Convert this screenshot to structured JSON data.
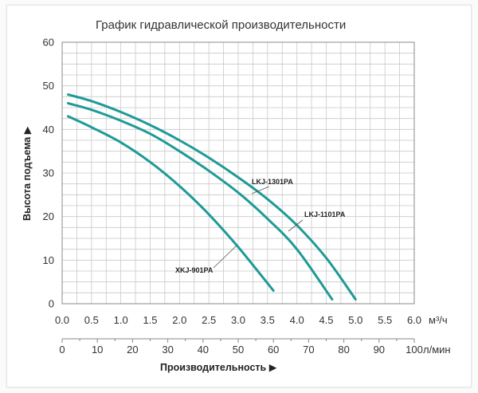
{
  "chart_data": {
    "type": "line",
    "title": "График гидравлической производительности",
    "ylabel": "Высота подъема ▶",
    "xlabel": "Производительность ▶",
    "x_unit_primary": "м³/ч",
    "x_unit_secondary": "л/мин",
    "ylim": [
      0,
      60
    ],
    "y_ticks": [
      0,
      10,
      20,
      30,
      40,
      50,
      60
    ],
    "xlim": [
      0,
      6.0
    ],
    "x_ticks_primary": [
      "0.0",
      "0.5",
      "1.0",
      "1.5",
      "2.0",
      "2.5",
      "3.0",
      "3.5",
      "4.0",
      "4.5",
      "5.0",
      "5.5",
      "6.0"
    ],
    "x_ticks_secondary": [
      "0",
      "10",
      "20",
      "30",
      "40",
      "50",
      "60",
      "70",
      "80",
      "90",
      "100"
    ],
    "grid": true,
    "line_color": "#1f9a96",
    "series": [
      {
        "name": "LKJ-1301PA",
        "x": [
          0.1,
          0.5,
          1.0,
          1.5,
          2.0,
          2.5,
          3.0,
          3.5,
          4.0,
          4.5,
          5.0
        ],
        "y": [
          48,
          46.5,
          44,
          41,
          37.5,
          33.5,
          29,
          24,
          18,
          10.5,
          1
        ]
      },
      {
        "name": "LKJ-1101PA",
        "x": [
          0.1,
          0.5,
          1.0,
          1.5,
          2.0,
          2.5,
          3.0,
          3.5,
          4.0,
          4.6
        ],
        "y": [
          46,
          44.5,
          42,
          39,
          35,
          30.5,
          25.5,
          19.5,
          12.5,
          1
        ]
      },
      {
        "name": "XKJ-901PA",
        "x": [
          0.1,
          0.5,
          1.0,
          1.5,
          2.0,
          2.5,
          3.0,
          3.6
        ],
        "y": [
          43,
          40.5,
          37,
          32.5,
          27,
          20.5,
          13,
          3
        ]
      }
    ]
  }
}
